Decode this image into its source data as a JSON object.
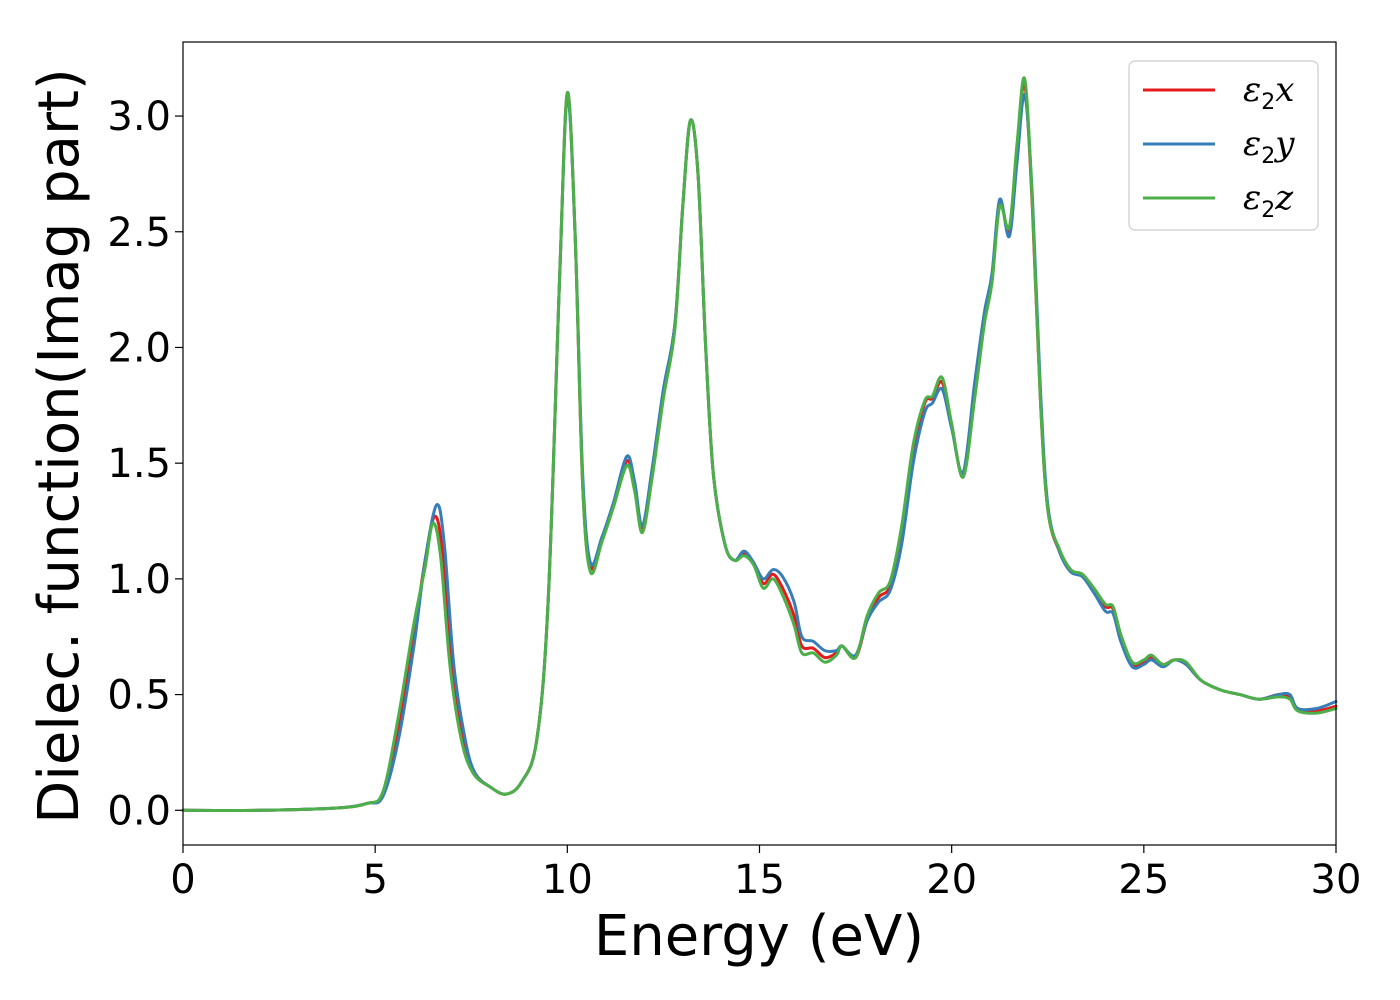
{
  "chart_data": {
    "type": "line",
    "title": "",
    "xlabel": "Energy (eV)",
    "ylabel": "Dielec. function(Imag part)",
    "xlim": [
      0,
      30
    ],
    "ylim": [
      -0.15,
      3.32
    ],
    "xticks": [
      0,
      5,
      10,
      15,
      20,
      25,
      30
    ],
    "yticks": [
      0.0,
      0.5,
      1.0,
      1.5,
      2.0,
      2.5,
      3.0
    ],
    "xtick_labels": [
      "0",
      "5",
      "10",
      "15",
      "20",
      "25",
      "30"
    ],
    "ytick_labels": [
      "0.0",
      "0.5",
      "1.0",
      "1.5",
      "2.0",
      "2.5",
      "3.0"
    ],
    "grid": false,
    "legend_position": "top-right",
    "series": [
      {
        "name": "ε2x",
        "legend_base": "ε",
        "legend_sub": "2",
        "legend_var": "x",
        "color": "#e41a1c",
        "points": [
          [
            0,
            0.0
          ],
          [
            2,
            0.0
          ],
          [
            4,
            0.01
          ],
          [
            4.8,
            0.03
          ],
          [
            5.2,
            0.07
          ],
          [
            5.6,
            0.35
          ],
          [
            6.0,
            0.75
          ],
          [
            6.3,
            1.08
          ],
          [
            6.55,
            1.27
          ],
          [
            6.75,
            1.12
          ],
          [
            7.0,
            0.62
          ],
          [
            7.3,
            0.3
          ],
          [
            7.6,
            0.16
          ],
          [
            8.0,
            0.1
          ],
          [
            8.4,
            0.07
          ],
          [
            8.8,
            0.12
          ],
          [
            9.2,
            0.3
          ],
          [
            9.5,
            0.9
          ],
          [
            9.8,
            2.3
          ],
          [
            10.0,
            3.1
          ],
          [
            10.2,
            2.5
          ],
          [
            10.4,
            1.4
          ],
          [
            10.6,
            1.05
          ],
          [
            10.9,
            1.17
          ],
          [
            11.2,
            1.32
          ],
          [
            11.55,
            1.51
          ],
          [
            11.75,
            1.4
          ],
          [
            11.95,
            1.22
          ],
          [
            12.2,
            1.45
          ],
          [
            12.5,
            1.8
          ],
          [
            12.8,
            2.1
          ],
          [
            13.0,
            2.6
          ],
          [
            13.2,
            2.98
          ],
          [
            13.4,
            2.75
          ],
          [
            13.6,
            2.0
          ],
          [
            13.8,
            1.45
          ],
          [
            14.1,
            1.15
          ],
          [
            14.35,
            1.08
          ],
          [
            14.6,
            1.11
          ],
          [
            14.85,
            1.07
          ],
          [
            15.1,
            0.98
          ],
          [
            15.35,
            1.02
          ],
          [
            15.6,
            0.96
          ],
          [
            15.9,
            0.84
          ],
          [
            16.1,
            0.71
          ],
          [
            16.4,
            0.7
          ],
          [
            16.7,
            0.66
          ],
          [
            17.0,
            0.68
          ],
          [
            17.15,
            0.71
          ],
          [
            17.5,
            0.66
          ],
          [
            17.8,
            0.82
          ],
          [
            18.1,
            0.92
          ],
          [
            18.4,
            0.97
          ],
          [
            18.7,
            1.2
          ],
          [
            19.0,
            1.55
          ],
          [
            19.3,
            1.76
          ],
          [
            19.5,
            1.78
          ],
          [
            19.75,
            1.85
          ],
          [
            20.0,
            1.66
          ],
          [
            20.3,
            1.45
          ],
          [
            20.6,
            1.8
          ],
          [
            20.85,
            2.12
          ],
          [
            21.05,
            2.3
          ],
          [
            21.25,
            2.63
          ],
          [
            21.5,
            2.5
          ],
          [
            21.7,
            2.85
          ],
          [
            21.9,
            3.14
          ],
          [
            22.1,
            2.6
          ],
          [
            22.3,
            1.8
          ],
          [
            22.5,
            1.3
          ],
          [
            22.8,
            1.12
          ],
          [
            23.1,
            1.03
          ],
          [
            23.4,
            1.02
          ],
          [
            23.7,
            0.95
          ],
          [
            24.0,
            0.88
          ],
          [
            24.2,
            0.87
          ],
          [
            24.4,
            0.75
          ],
          [
            24.7,
            0.63
          ],
          [
            25.0,
            0.64
          ],
          [
            25.2,
            0.66
          ],
          [
            25.5,
            0.63
          ],
          [
            25.8,
            0.65
          ],
          [
            26.1,
            0.63
          ],
          [
            26.5,
            0.56
          ],
          [
            27.0,
            0.52
          ],
          [
            27.5,
            0.5
          ],
          [
            28.0,
            0.48
          ],
          [
            28.5,
            0.5
          ],
          [
            28.8,
            0.49
          ],
          [
            29.0,
            0.44
          ],
          [
            29.5,
            0.43
          ],
          [
            30.0,
            0.45
          ]
        ]
      },
      {
        "name": "ε2y",
        "legend_base": "ε",
        "legend_sub": "2",
        "legend_var": "y",
        "color": "#377eb8",
        "points": [
          [
            0,
            0.0
          ],
          [
            2,
            0.0
          ],
          [
            4,
            0.01
          ],
          [
            4.8,
            0.03
          ],
          [
            5.2,
            0.06
          ],
          [
            5.6,
            0.3
          ],
          [
            6.0,
            0.7
          ],
          [
            6.3,
            1.08
          ],
          [
            6.6,
            1.32
          ],
          [
            6.8,
            1.15
          ],
          [
            7.05,
            0.62
          ],
          [
            7.35,
            0.3
          ],
          [
            7.6,
            0.16
          ],
          [
            8.0,
            0.1
          ],
          [
            8.4,
            0.07
          ],
          [
            8.8,
            0.12
          ],
          [
            9.2,
            0.3
          ],
          [
            9.5,
            0.9
          ],
          [
            9.8,
            2.3
          ],
          [
            10.0,
            3.08
          ],
          [
            10.2,
            2.5
          ],
          [
            10.4,
            1.45
          ],
          [
            10.6,
            1.07
          ],
          [
            10.9,
            1.18
          ],
          [
            11.2,
            1.33
          ],
          [
            11.55,
            1.53
          ],
          [
            11.75,
            1.42
          ],
          [
            11.95,
            1.23
          ],
          [
            12.2,
            1.47
          ],
          [
            12.5,
            1.82
          ],
          [
            12.8,
            2.1
          ],
          [
            13.0,
            2.6
          ],
          [
            13.2,
            2.98
          ],
          [
            13.4,
            2.75
          ],
          [
            13.6,
            2.0
          ],
          [
            13.8,
            1.45
          ],
          [
            14.1,
            1.15
          ],
          [
            14.35,
            1.08
          ],
          [
            14.6,
            1.12
          ],
          [
            14.85,
            1.07
          ],
          [
            15.1,
            1.0
          ],
          [
            15.35,
            1.04
          ],
          [
            15.6,
            1.01
          ],
          [
            15.9,
            0.9
          ],
          [
            16.1,
            0.75
          ],
          [
            16.4,
            0.73
          ],
          [
            16.7,
            0.69
          ],
          [
            17.0,
            0.69
          ],
          [
            17.15,
            0.71
          ],
          [
            17.5,
            0.67
          ],
          [
            17.8,
            0.82
          ],
          [
            18.1,
            0.9
          ],
          [
            18.4,
            0.95
          ],
          [
            18.7,
            1.15
          ],
          [
            19.0,
            1.5
          ],
          [
            19.3,
            1.72
          ],
          [
            19.5,
            1.76
          ],
          [
            19.75,
            1.82
          ],
          [
            20.0,
            1.65
          ],
          [
            20.3,
            1.46
          ],
          [
            20.6,
            1.85
          ],
          [
            20.85,
            2.15
          ],
          [
            21.05,
            2.32
          ],
          [
            21.25,
            2.64
          ],
          [
            21.5,
            2.48
          ],
          [
            21.7,
            2.8
          ],
          [
            21.9,
            3.09
          ],
          [
            22.1,
            2.65
          ],
          [
            22.3,
            1.85
          ],
          [
            22.5,
            1.32
          ],
          [
            22.8,
            1.12
          ],
          [
            23.1,
            1.03
          ],
          [
            23.4,
            1.01
          ],
          [
            23.7,
            0.94
          ],
          [
            24.0,
            0.86
          ],
          [
            24.2,
            0.85
          ],
          [
            24.4,
            0.73
          ],
          [
            24.7,
            0.62
          ],
          [
            25.0,
            0.63
          ],
          [
            25.2,
            0.65
          ],
          [
            25.5,
            0.62
          ],
          [
            25.8,
            0.65
          ],
          [
            26.1,
            0.63
          ],
          [
            26.5,
            0.56
          ],
          [
            27.0,
            0.52
          ],
          [
            27.5,
            0.5
          ],
          [
            28.0,
            0.48
          ],
          [
            28.5,
            0.5
          ],
          [
            28.8,
            0.5
          ],
          [
            29.0,
            0.44
          ],
          [
            29.5,
            0.44
          ],
          [
            30.0,
            0.47
          ]
        ]
      },
      {
        "name": "ε2z",
        "legend_base": "ε",
        "legend_sub": "2",
        "legend_var": "z",
        "color": "#4daf4a",
        "points": [
          [
            0,
            0.0
          ],
          [
            2,
            0.0
          ],
          [
            4,
            0.01
          ],
          [
            4.8,
            0.03
          ],
          [
            5.2,
            0.08
          ],
          [
            5.6,
            0.4
          ],
          [
            6.0,
            0.8
          ],
          [
            6.3,
            1.05
          ],
          [
            6.5,
            1.24
          ],
          [
            6.7,
            1.1
          ],
          [
            6.95,
            0.62
          ],
          [
            7.25,
            0.3
          ],
          [
            7.55,
            0.16
          ],
          [
            8.0,
            0.1
          ],
          [
            8.4,
            0.07
          ],
          [
            8.8,
            0.12
          ],
          [
            9.2,
            0.3
          ],
          [
            9.5,
            0.9
          ],
          [
            9.8,
            2.3
          ],
          [
            10.0,
            3.1
          ],
          [
            10.2,
            2.5
          ],
          [
            10.4,
            1.4
          ],
          [
            10.6,
            1.03
          ],
          [
            10.9,
            1.16
          ],
          [
            11.2,
            1.31
          ],
          [
            11.55,
            1.49
          ],
          [
            11.75,
            1.38
          ],
          [
            11.95,
            1.2
          ],
          [
            12.2,
            1.43
          ],
          [
            12.5,
            1.78
          ],
          [
            12.8,
            2.08
          ],
          [
            13.0,
            2.6
          ],
          [
            13.2,
            2.98
          ],
          [
            13.4,
            2.75
          ],
          [
            13.6,
            2.0
          ],
          [
            13.8,
            1.45
          ],
          [
            14.1,
            1.15
          ],
          [
            14.35,
            1.08
          ],
          [
            14.6,
            1.1
          ],
          [
            14.85,
            1.06
          ],
          [
            15.1,
            0.96
          ],
          [
            15.35,
            1.0
          ],
          [
            15.6,
            0.93
          ],
          [
            15.9,
            0.8
          ],
          [
            16.1,
            0.68
          ],
          [
            16.4,
            0.68
          ],
          [
            16.7,
            0.64
          ],
          [
            17.0,
            0.67
          ],
          [
            17.15,
            0.71
          ],
          [
            17.5,
            0.66
          ],
          [
            17.8,
            0.84
          ],
          [
            18.1,
            0.94
          ],
          [
            18.4,
            0.99
          ],
          [
            18.7,
            1.23
          ],
          [
            19.0,
            1.58
          ],
          [
            19.3,
            1.77
          ],
          [
            19.5,
            1.79
          ],
          [
            19.75,
            1.87
          ],
          [
            20.0,
            1.67
          ],
          [
            20.3,
            1.44
          ],
          [
            20.6,
            1.78
          ],
          [
            20.85,
            2.1
          ],
          [
            21.05,
            2.28
          ],
          [
            21.25,
            2.61
          ],
          [
            21.5,
            2.52
          ],
          [
            21.7,
            2.88
          ],
          [
            21.9,
            3.16
          ],
          [
            22.1,
            2.62
          ],
          [
            22.3,
            1.8
          ],
          [
            22.5,
            1.3
          ],
          [
            22.8,
            1.13
          ],
          [
            23.1,
            1.04
          ],
          [
            23.4,
            1.02
          ],
          [
            23.7,
            0.96
          ],
          [
            24.0,
            0.89
          ],
          [
            24.2,
            0.88
          ],
          [
            24.4,
            0.76
          ],
          [
            24.7,
            0.64
          ],
          [
            25.0,
            0.65
          ],
          [
            25.2,
            0.67
          ],
          [
            25.5,
            0.63
          ],
          [
            25.8,
            0.65
          ],
          [
            26.1,
            0.64
          ],
          [
            26.5,
            0.56
          ],
          [
            27.0,
            0.52
          ],
          [
            27.5,
            0.5
          ],
          [
            28.0,
            0.48
          ],
          [
            28.5,
            0.49
          ],
          [
            28.8,
            0.48
          ],
          [
            29.0,
            0.43
          ],
          [
            29.5,
            0.42
          ],
          [
            30.0,
            0.44
          ]
        ]
      }
    ]
  }
}
